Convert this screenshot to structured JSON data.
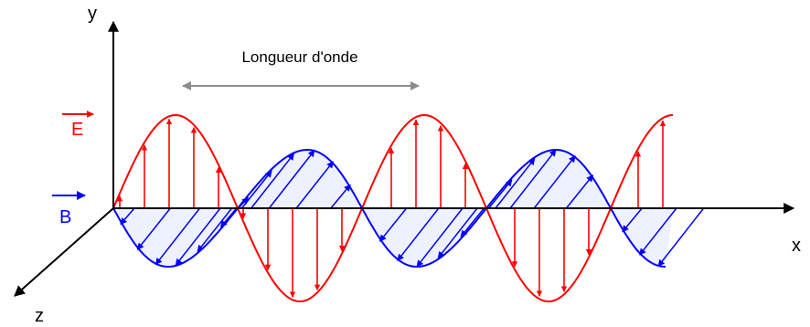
{
  "axes": {
    "x": "x",
    "y": "y",
    "z": "z"
  },
  "wavelength_label": "Longueur d'onde",
  "field_e": {
    "label": "E",
    "color": "#ff0000"
  },
  "field_b": {
    "label": "B",
    "color": "#0000ff"
  },
  "colors": {
    "axis": "#000000",
    "dimension": "#8c8c8c",
    "background": "#ffffff"
  },
  "wave": {
    "visible_wavelengths": 2.25
  }
}
